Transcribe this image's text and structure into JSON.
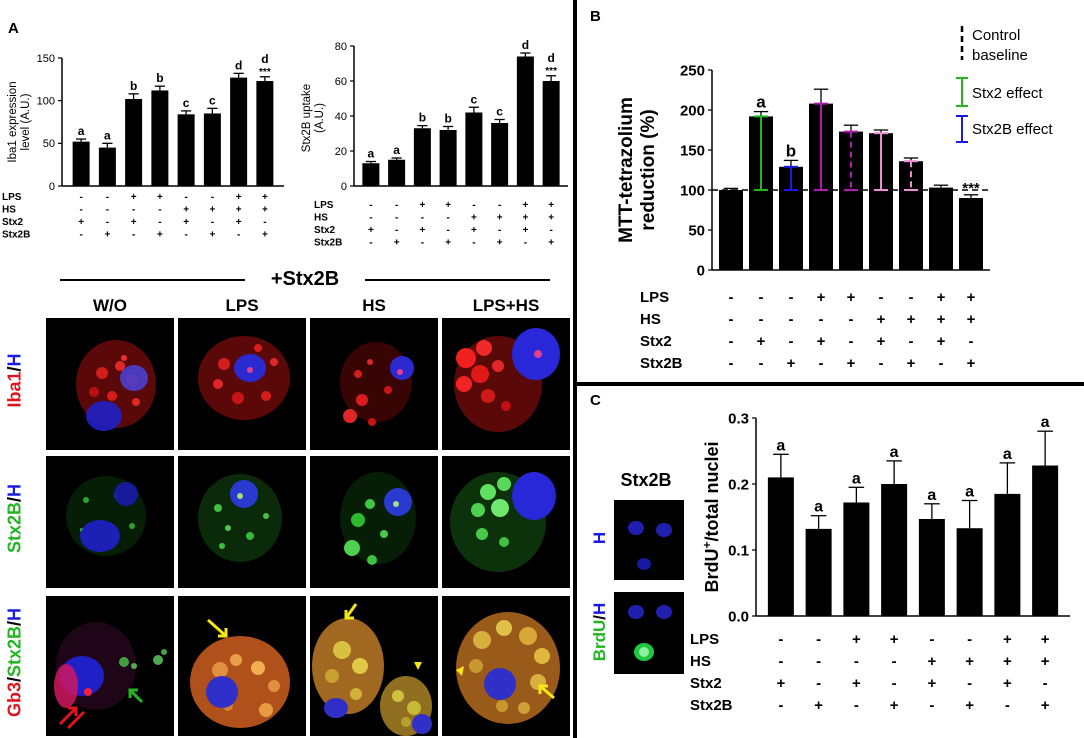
{
  "panels": {
    "a": "A",
    "b": "B",
    "c": "C"
  },
  "colors": {
    "red": "#e0141e",
    "green": "#22b522",
    "blue": "#1a1ae6",
    "yellow": "#f5e614",
    "purple": "#b21ab2",
    "pink": "#f08cd2",
    "bar": "#000000"
  },
  "treatments": {
    "row_labels": [
      "LPS",
      "HS",
      "Stx2",
      "Stx2B"
    ],
    "signs": [
      [
        "-",
        "-",
        "+",
        "+",
        "-",
        "-",
        "+",
        "+"
      ],
      [
        "-",
        "-",
        "-",
        "-",
        "+",
        "+",
        "+",
        "+"
      ],
      [
        "+",
        "-",
        "+",
        "-",
        "+",
        "-",
        "+",
        "-"
      ],
      [
        "-",
        "+",
        "-",
        "+",
        "-",
        "+",
        "-",
        "+"
      ]
    ],
    "signs_b": [
      [
        "-",
        "-",
        "-",
        "+",
        "+",
        "-",
        "-",
        "+",
        "+"
      ],
      [
        "-",
        "-",
        "-",
        "-",
        "-",
        "+",
        "+",
        "+",
        "+"
      ],
      [
        "-",
        "+",
        "-",
        "+",
        "-",
        "+",
        "-",
        "+",
        "-"
      ],
      [
        "-",
        "-",
        "+",
        "-",
        "+",
        "-",
        "+",
        "-",
        "+"
      ]
    ]
  },
  "chart_data": [
    {
      "id": "iba1",
      "type": "bar",
      "ylabel": "Iba1 expression level (A.U.)",
      "ylabel_lines": [
        "Iba1 expression",
        "level (A.U.)"
      ],
      "ylim": [
        0,
        150
      ],
      "yticks": [
        "0",
        "50",
        "100",
        "150"
      ],
      "yticks_values": [
        0,
        50,
        100,
        150
      ],
      "values": [
        52,
        45,
        102,
        112,
        84,
        85,
        127,
        123
      ],
      "errors": [
        3,
        5,
        6,
        5,
        4,
        6,
        5,
        5
      ],
      "letters": [
        "a",
        "a",
        "b",
        "b",
        "c",
        "c",
        "d",
        "d"
      ],
      "annotation": {
        "index": 7,
        "text": "***"
      }
    },
    {
      "id": "stx2b_uptake",
      "type": "bar",
      "ylabel": "Stx2B uptake (A.U.)",
      "ylabel_lines": [
        "Stx2B uptake",
        "(A.U.)"
      ],
      "ylim": [
        0,
        80
      ],
      "yticks": [
        "0",
        "20",
        "40",
        "60",
        "80"
      ],
      "yticks_values": [
        0,
        20,
        40,
        60,
        80
      ],
      "values": [
        13,
        15,
        33,
        32,
        42,
        36,
        74,
        60
      ],
      "errors": [
        1,
        1,
        1.5,
        2,
        3,
        2,
        2,
        3
      ],
      "letters": [
        "a",
        "a",
        "b",
        "b",
        "c",
        "c",
        "d",
        "d"
      ],
      "annotation": {
        "index": 7,
        "text": "***"
      }
    },
    {
      "id": "mtt",
      "type": "bar",
      "ylabel": "MTT-tetrazolium reduction (%)",
      "ylabel_lines": [
        "MTT-tetrazolium",
        "reduction (%)"
      ],
      "ylim": [
        0,
        250
      ],
      "yticks": [
        "0",
        "50",
        "100",
        "150",
        "200",
        "250"
      ],
      "yticks_values": [
        0,
        50,
        100,
        150,
        200,
        250
      ],
      "values": [
        100,
        192,
        129,
        208,
        173,
        171,
        136,
        103,
        90
      ],
      "errors": [
        2,
        6,
        8,
        18,
        8,
        4,
        4,
        3,
        4
      ],
      "letters": [
        "",
        "a",
        "b",
        "",
        "",
        "",
        "",
        "",
        ""
      ],
      "annotation": {
        "index": 8,
        "text": "***"
      },
      "baseline": 100,
      "legend": [
        "Control baseline",
        "Stx2 effect",
        "Stx2B effect"
      ],
      "legend_lines": [
        [
          "Control",
          "baseline"
        ],
        [
          "Stx2 effect"
        ],
        [
          "Stx2B effect"
        ]
      ]
    },
    {
      "id": "brdu",
      "type": "bar",
      "ylabel": "BrdU+/total nuclei",
      "ylabel_main": "BrdU",
      "ylabel_sup": "+",
      "ylabel_rest": "/total nuclei",
      "ylim": [
        0,
        0.3
      ],
      "yticks": [
        "0.0",
        "0.1",
        "0.2",
        "0.3"
      ],
      "yticks_values": [
        0,
        0.1,
        0.2,
        0.3
      ],
      "values": [
        0.21,
        0.132,
        0.172,
        0.2,
        0.147,
        0.133,
        0.185,
        0.228
      ],
      "errors": [
        0.035,
        0.02,
        0.023,
        0.035,
        0.023,
        0.042,
        0.047,
        0.052
      ],
      "letters": [
        "a",
        "a",
        "a",
        "a",
        "a",
        "a",
        "a",
        "a"
      ]
    }
  ],
  "microscopy": {
    "header": "+Stx2B",
    "columns": [
      "W/O",
      "LPS",
      "HS",
      "LPS+HS"
    ],
    "rows": [
      {
        "parts": [
          {
            "text": "Iba1",
            "color": "#e0141e"
          },
          {
            "text": "/",
            "color": "#000000"
          },
          {
            "text": "H",
            "color": "#1a1ae6"
          }
        ]
      },
      {
        "parts": [
          {
            "text": "Stx2B",
            "color": "#22b522"
          },
          {
            "text": "/",
            "color": "#000000"
          },
          {
            "text": "H",
            "color": "#1a1ae6"
          }
        ]
      },
      {
        "parts": [
          {
            "text": "Gb3",
            "color": "#e0141e"
          },
          {
            "text": "/",
            "color": "#000000"
          },
          {
            "text": "Stx2B",
            "color": "#22b522"
          },
          {
            "text": "/",
            "color": "#000000"
          },
          {
            "text": "H",
            "color": "#1a1ae6"
          }
        ]
      }
    ]
  },
  "panel_c_images": {
    "title": "Stx2B",
    "rows": [
      {
        "parts": [
          {
            "text": "H",
            "color": "#1a1ae6"
          }
        ]
      },
      {
        "parts": [
          {
            "text": "BrdU",
            "color": "#22b522"
          },
          {
            "text": "/",
            "color": "#000000"
          },
          {
            "text": "H",
            "color": "#1a1ae6"
          }
        ]
      }
    ]
  }
}
